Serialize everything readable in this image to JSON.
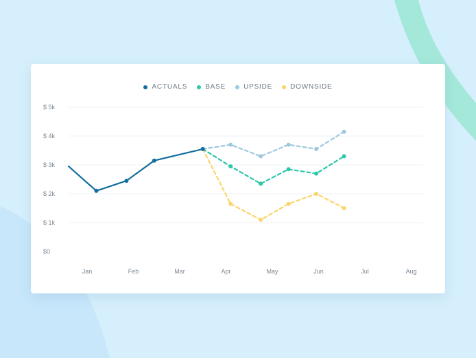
{
  "colors": {
    "background": "#d6effc",
    "card": "#ffffff",
    "accent_swoosh": "#9ee6d8"
  },
  "chart_data": {
    "type": "line",
    "categories": [
      "Jan",
      "Feb",
      "Mar",
      "Apr",
      "May",
      "Jun",
      "Jul",
      "Aug"
    ],
    "y_ticks": [
      "$ 5k",
      "$ 4k",
      "$ 3k",
      "$ 2k",
      "$ 1k",
      "$0"
    ],
    "ylim": [
      0,
      5000
    ],
    "grid": true,
    "legend_position": "top",
    "series": [
      {
        "name": "ACTUALS",
        "color": "#136f9c",
        "dashed": false,
        "points": [
          [
            0,
            2950
          ],
          [
            0.6,
            2100
          ],
          [
            1.25,
            2450
          ],
          [
            1.85,
            3150
          ],
          [
            2.9,
            3550
          ]
        ]
      },
      {
        "name": "BASE",
        "color": "#2cc7aa",
        "dashed": true,
        "points": [
          [
            2.9,
            3550
          ],
          [
            3.5,
            2950
          ],
          [
            4.15,
            2350
          ],
          [
            4.75,
            2850
          ],
          [
            5.35,
            2700
          ],
          [
            5.95,
            3300
          ]
        ]
      },
      {
        "name": "UPSIDE",
        "color": "#9dc8df",
        "dashed": true,
        "points": [
          [
            2.9,
            3550
          ],
          [
            3.5,
            3700
          ],
          [
            4.15,
            3300
          ],
          [
            4.75,
            3700
          ],
          [
            5.35,
            3550
          ],
          [
            5.95,
            4150
          ]
        ]
      },
      {
        "name": "DOWNSIDE",
        "color": "#f9d56b",
        "dashed": true,
        "points": [
          [
            2.9,
            3550
          ],
          [
            3.5,
            1650
          ],
          [
            4.15,
            1100
          ],
          [
            4.75,
            1650
          ],
          [
            5.35,
            2000
          ],
          [
            5.95,
            1500
          ]
        ]
      }
    ]
  }
}
